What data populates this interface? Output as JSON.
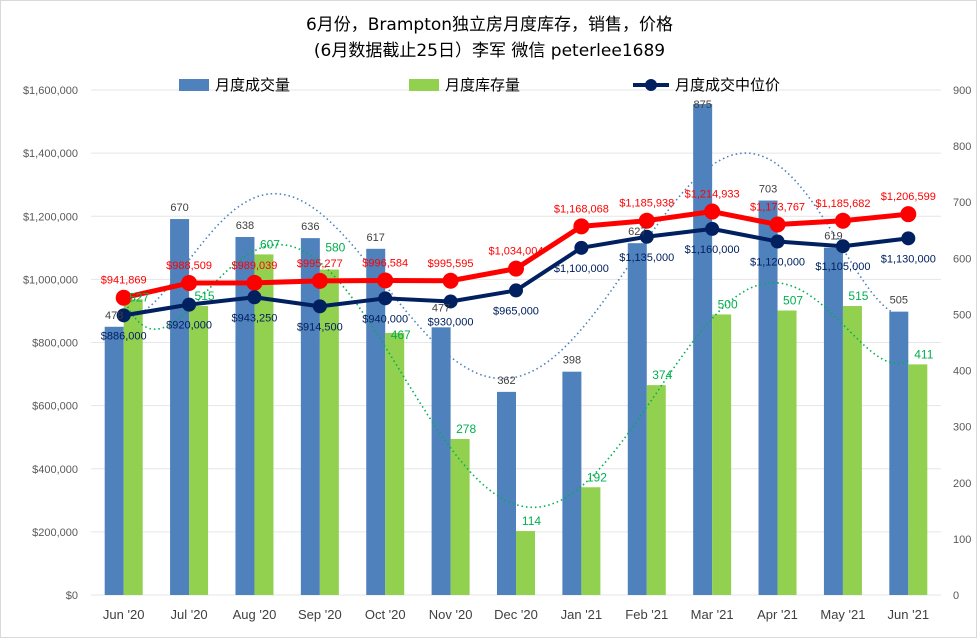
{
  "chart_data": {
    "type": "bar",
    "title": "6月份，Brampton独立房月度库存，销售，价格",
    "subtitle": "(6月数据截止25日）李军 微信 peterlee1689",
    "categories": [
      "Jun '20",
      "Jul '20",
      "Aug '20",
      "Sep '20",
      "Oct '20",
      "Nov '20",
      "Dec '20",
      "Jan '21",
      "Feb '21",
      "Mar '21",
      "Apr '21",
      "May '21",
      "Jun '21"
    ],
    "left_axis": {
      "ylim": [
        0,
        1600000
      ],
      "ticks": [
        "$0",
        "$200,000",
        "$400,000",
        "$600,000",
        "$800,000",
        "$1,000,000",
        "$1,200,000",
        "$1,400,000",
        "$1,600,000"
      ]
    },
    "right_axis": {
      "ylim": [
        0,
        900
      ],
      "ticks": [
        "0",
        "100",
        "200",
        "300",
        "400",
        "500",
        "600",
        "700",
        "800",
        "900"
      ]
    },
    "grid": true,
    "legend_position": "top",
    "series": [
      {
        "name": "月度成交量",
        "type": "bar",
        "axis": "right",
        "color": "#4f81bd",
        "label_color": "#404040",
        "values": [
          478,
          670,
          638,
          636,
          617,
          477,
          362,
          398,
          627,
          875,
          703,
          619,
          505
        ],
        "trendline": "polynomial-dotted"
      },
      {
        "name": "月度库存量",
        "type": "bar",
        "axis": "right",
        "color": "#92d050",
        "label_color": "#00b050",
        "values": [
          527,
          515,
          607,
          580,
          467,
          278,
          114,
          192,
          374,
          500,
          507,
          515,
          411
        ],
        "trendline": "polynomial-dotted"
      },
      {
        "name": "月度成交中位价",
        "type": "line",
        "axis": "left",
        "color": "#002060",
        "label_color": "#002060",
        "values": [
          886000,
          920000,
          943250,
          914500,
          940000,
          930000,
          965000,
          1100000,
          1135000,
          1160000,
          1120000,
          1105000,
          1130000
        ],
        "labels": [
          "$886,000",
          "$920,000",
          "$943,250",
          "$914,500",
          "$940,000",
          "$930,000",
          "$965,000",
          "$1,100,000",
          "$1,135,000",
          "$1,160,000",
          "$1,120,000",
          "$1,105,000",
          "$1,130,000"
        ]
      },
      {
        "type": "line",
        "axis": "left",
        "color": "#ff0000",
        "label_color": "#ff0000",
        "values": [
          941869,
          988509,
          989039,
          995277,
          996584,
          995595,
          1034004,
          1168068,
          1185938,
          1214933,
          1173767,
          1185682,
          1206599
        ],
        "labels": [
          "$941,869",
          "$988,509",
          "$989,039",
          "$995,277",
          "$996,584",
          "$995,595",
          "$1,034,004",
          "$1,168,068",
          "$1,185,938",
          "$1,214,933",
          "$1,173,767",
          "$1,185,682",
          "$1,206,599"
        ]
      }
    ]
  }
}
